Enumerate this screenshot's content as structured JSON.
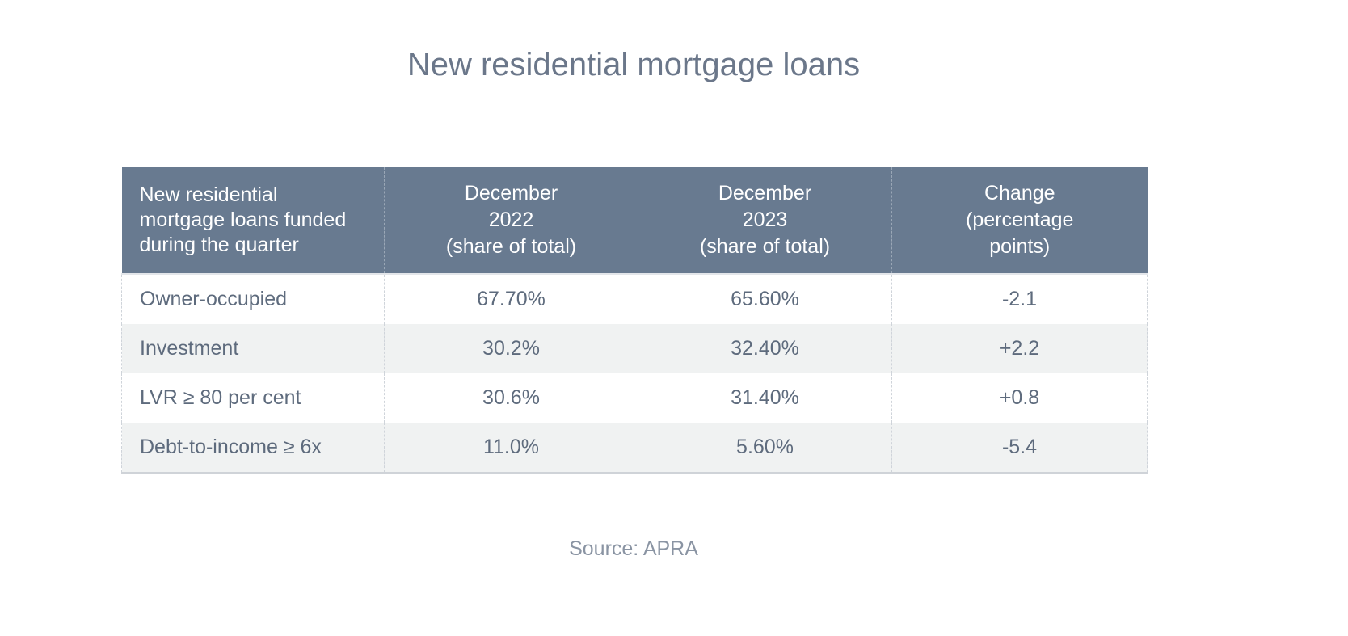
{
  "title": "New residential mortgage loans",
  "source": "Source: APRA",
  "colors": {
    "header_bg": "#687a90",
    "header_text": "#ffffff",
    "body_text": "#5e6b7d",
    "alt_row_bg": "#f0f2f2"
  },
  "chart_data": {
    "type": "table",
    "title": "New residential mortgage loans",
    "columns": [
      "New residential mortgage loans funded during the quarter",
      "December 2022 (share of total)",
      "December 2023 (share of total)",
      "Change (percentage points)"
    ],
    "header": {
      "c0": [
        "New residential",
        "mortgage loans funded",
        "during the quarter"
      ],
      "c1": [
        "December",
        "2022",
        "(share of total)"
      ],
      "c2": [
        "December",
        "2023",
        "(share of total)"
      ],
      "c3": [
        "Change",
        "(percentage",
        "points)"
      ]
    },
    "rows": [
      {
        "label": "Owner-occupied",
        "dec2022": "67.70%",
        "dec2023": "65.60%",
        "change": "-2.1"
      },
      {
        "label": "Investment",
        "dec2022": "30.2%",
        "dec2023": "32.40%",
        "change": "+2.2"
      },
      {
        "label": "LVR ≥ 80 per cent",
        "dec2022": "30.6%",
        "dec2023": "31.40%",
        "change": "+0.8"
      },
      {
        "label": "Debt-to-income ≥ 6x",
        "dec2022": "11.0%",
        "dec2023": "5.60%",
        "change": "-5.4"
      }
    ],
    "source": "Source: APRA"
  }
}
